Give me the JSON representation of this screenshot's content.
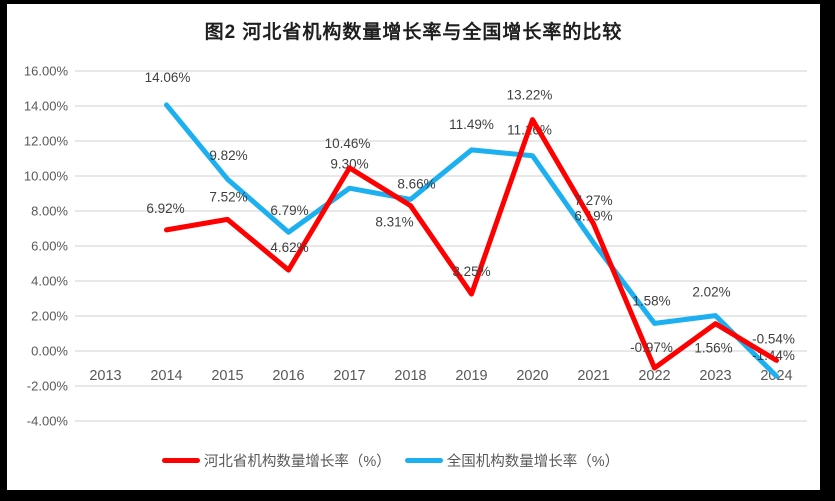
{
  "chart": {
    "title": "图2 河北省机构数量增长率与全国增长率的比较"
  },
  "chart_data": {
    "type": "line",
    "title": "图2 河北省机构数量增长率与全国增长率的比较",
    "categories": [
      "2013",
      "2014",
      "2015",
      "2016",
      "2017",
      "2018",
      "2019",
      "2020",
      "2021",
      "2022",
      "2023",
      "2024"
    ],
    "series": [
      {
        "id": "hebei",
        "name": "河北省机构数量增长率（%）",
        "color": "#FF0000",
        "values": [
          null,
          6.92,
          7.52,
          4.62,
          10.46,
          8.31,
          3.25,
          13.22,
          7.27,
          -0.97,
          1.56,
          -0.54
        ],
        "labels": [
          null,
          "6.92%",
          "7.52%",
          "4.62%",
          "10.46%",
          "8.31%",
          "3.25%",
          "13.22%",
          "7.27%",
          "-0.97%",
          "1.56%",
          "-0.54%"
        ],
        "label_offsets": [
          null,
          [
            -1,
            -17
          ],
          [
            1,
            -18
          ],
          [
            1,
            -18
          ],
          [
            -2,
            -20
          ],
          [
            -16,
            21
          ],
          [
            0,
            -18
          ],
          [
            -3,
            -20
          ],
          [
            0,
            -19
          ],
          [
            -3,
            -16
          ],
          [
            -2,
            29
          ],
          [
            -3,
            -17
          ]
        ]
      },
      {
        "id": "national",
        "name": "全国机构数量增长率（%）",
        "color": "#1CB0F0",
        "values": [
          null,
          14.06,
          9.82,
          6.79,
          9.3,
          8.66,
          11.49,
          11.16,
          6.19,
          1.58,
          2.02,
          -1.44
        ],
        "labels": [
          null,
          "14.06%",
          "9.82%",
          "6.79%",
          "9.30%",
          "8.66%",
          "11.49%",
          "11.16%",
          "6.19%",
          "1.58%",
          "2.02%",
          "-1.44%"
        ],
        "label_offsets": [
          null,
          [
            1,
            -23
          ],
          [
            1,
            -19
          ],
          [
            1,
            -17
          ],
          [
            0,
            -20
          ],
          [
            6,
            -11
          ],
          [
            0,
            -21
          ],
          [
            -3,
            -21
          ],
          [
            0,
            -22
          ],
          [
            -3,
            -18
          ],
          [
            -4,
            -19
          ],
          [
            -3,
            -16
          ]
        ]
      }
    ],
    "yticks": [
      {
        "v": 16,
        "label": "16.00%"
      },
      {
        "v": 14,
        "label": "14.00%"
      },
      {
        "v": 12,
        "label": "12.00%"
      },
      {
        "v": 10,
        "label": "10.00%"
      },
      {
        "v": 8,
        "label": "8.00%"
      },
      {
        "v": 6,
        "label": "6.00%"
      },
      {
        "v": 4,
        "label": "4.00%"
      },
      {
        "v": 2,
        "label": "2.00%"
      },
      {
        "v": 0,
        "label": "0.00%"
      },
      {
        "v": -2,
        "label": "-2.00%"
      },
      {
        "v": -4,
        "label": "-4.00%"
      }
    ],
    "ylim": [
      -4,
      16
    ],
    "xlabel": "",
    "ylabel": "",
    "grid": true,
    "legend_position": "bottom",
    "colors": {
      "grid": "#D9D9D9",
      "axis_text": "#595959",
      "label_text": "#3F3F3F",
      "frame": "#000000",
      "background": "#FFFFFF"
    }
  }
}
